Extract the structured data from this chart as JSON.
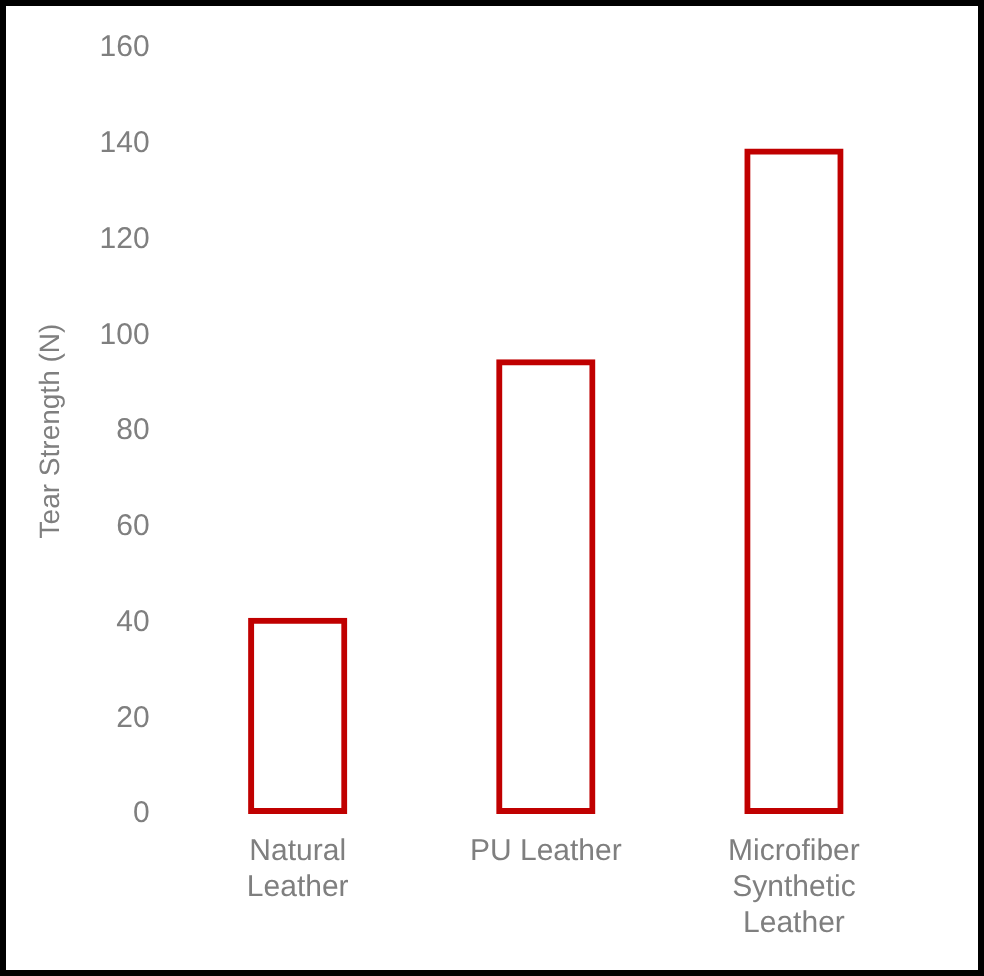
{
  "chart_data": {
    "type": "bar",
    "ylabel": "Tear Strength (N)",
    "categories": [
      "Natural Leather",
      "PU Leather",
      "Microfiber Synthetic Leather"
    ],
    "values": [
      41,
      95,
      139
    ],
    "color": "#c00000",
    "ylim": [
      0,
      160
    ],
    "yticks": [
      0,
      20,
      40,
      60,
      80,
      100,
      120,
      140,
      160
    ],
    "grid": false,
    "legend": false
  }
}
